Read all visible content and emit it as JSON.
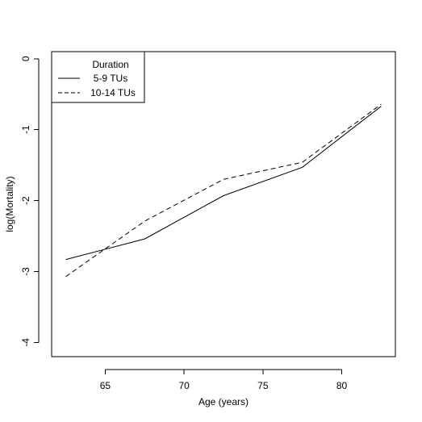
{
  "chart_data": {
    "type": "line",
    "title": "",
    "xlabel": "Age (years)",
    "ylabel": "log(Mortality)",
    "xlim": [
      61.6,
      83.4
    ],
    "ylim": [
      -4.2,
      0.1
    ],
    "x_ticks": [
      65,
      70,
      75,
      80
    ],
    "x_tick_labels": [
      "65",
      "70",
      "75",
      "80"
    ],
    "y_ticks": [
      -4,
      -3,
      -2,
      -1,
      0
    ],
    "y_tick_labels": [
      "-4",
      "-3",
      "-2",
      "-1",
      "0"
    ],
    "grid": false,
    "legend": {
      "title": "Duration",
      "placement": "top-left"
    },
    "x": [
      62.5,
      67.5,
      72.5,
      77.5,
      82.5
    ],
    "series": [
      {
        "name": "5-9 TUs",
        "line_style": "solid",
        "values": [
          -2.83,
          -2.54,
          -1.93,
          -1.53,
          -0.67
        ]
      },
      {
        "name": "10-14 TUs",
        "line_style": "dashed",
        "values": [
          -3.07,
          -2.29,
          -1.7,
          -1.46,
          -0.64
        ]
      }
    ]
  }
}
